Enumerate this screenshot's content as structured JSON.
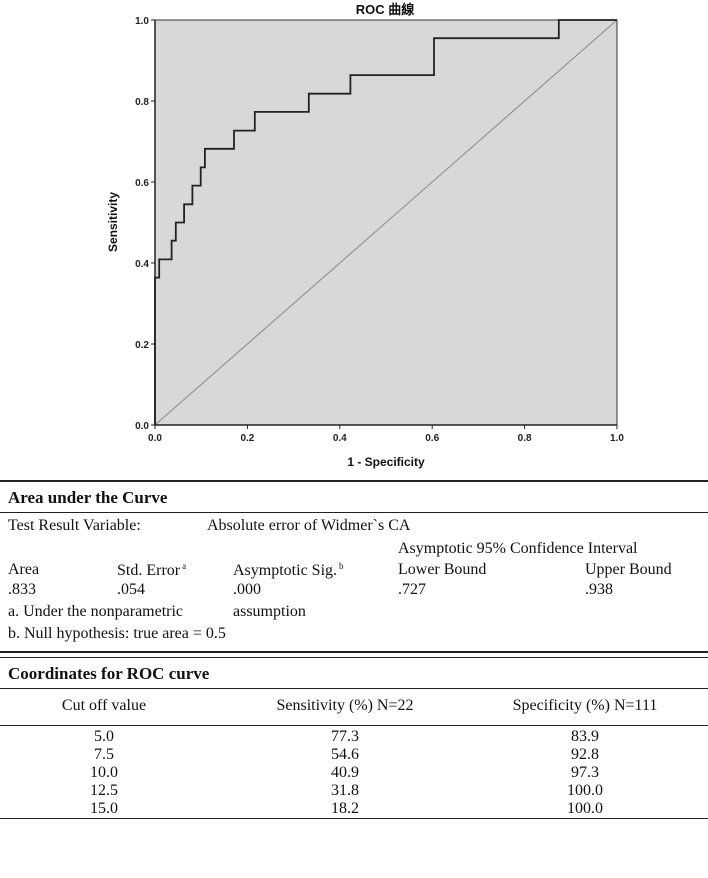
{
  "chart_data": {
    "type": "line",
    "title": "ROC 曲線",
    "xlabel": "1 - Specificity",
    "ylabel": "Sensitivity",
    "xlim": [
      0,
      1
    ],
    "ylim": [
      0,
      1
    ],
    "x_ticks": [
      "0.0",
      "0.2",
      "0.4",
      "0.6",
      "0.8",
      "1.0"
    ],
    "y_ticks": [
      "0.0",
      "0.2",
      "0.4",
      "0.6",
      "0.8",
      "1.0"
    ],
    "grid": false,
    "series": [
      {
        "x": [
          0.0,
          0.0,
          0.009,
          0.009,
          0.036,
          0.036,
          0.045,
          0.045,
          0.063,
          0.063,
          0.081,
          0.081,
          0.099,
          0.099,
          0.108,
          0.108,
          0.117,
          0.117,
          0.171,
          0.171,
          0.216,
          0.216,
          0.333,
          0.333,
          0.423,
          0.423,
          0.604,
          0.604,
          0.874,
          0.874,
          1.0
        ],
        "y": [
          0.0,
          0.364,
          0.364,
          0.409,
          0.409,
          0.455,
          0.455,
          0.5,
          0.5,
          0.545,
          0.545,
          0.591,
          0.591,
          0.636,
          0.636,
          0.682,
          0.682,
          0.682,
          0.682,
          0.727,
          0.727,
          0.773,
          0.773,
          0.818,
          0.818,
          0.864,
          0.864,
          0.955,
          0.955,
          1.0,
          1.0
        ]
      }
    ],
    "colors": {
      "plot_bg": "#d8d8d8",
      "line": "#222222"
    }
  },
  "auc": {
    "title": "Area under the Curve",
    "variable_label": "Test Result Variable:",
    "variable_value": "Absolute error of Widmer`s CA",
    "ci_header": "Asymptotic 95% Confidence Interval",
    "col_area": "Area",
    "col_std_error": "Std. Error",
    "col_std_error_mark": "a",
    "col_asym_sig": "Asymptotic Sig.",
    "col_asym_sig_mark": "b",
    "col_lower": "Lower Bound",
    "col_upper": "Upper Bound",
    "val_area": ".833",
    "val_std_error": ".054",
    "val_asym_sig": ".000",
    "val_lower": ".727",
    "val_upper": ".938",
    "note_a_1": "a. Under the nonparametric",
    "note_a_2": "assumption",
    "note_b": "b. Null hypothesis: true area = 0.5"
  },
  "coords": {
    "title": "Coordinates for ROC curve",
    "col_cutoff": "Cut off value",
    "col_sensitivity": "Sensitivity  (%) N=22",
    "col_specificity": "Specificity  (%) N=111",
    "rows": [
      {
        "cutoff": "5.0",
        "sensitivity": "77.3",
        "specificity": "83.9"
      },
      {
        "cutoff": "7.5",
        "sensitivity": "54.6",
        "specificity": "92.8"
      },
      {
        "cutoff": "10.0",
        "sensitivity": "40.9",
        "specificity": "97.3"
      },
      {
        "cutoff": "12.5",
        "sensitivity": "31.8",
        "specificity": "100.0"
      },
      {
        "cutoff": "15.0",
        "sensitivity": "18.2",
        "specificity": "100.0"
      }
    ]
  }
}
